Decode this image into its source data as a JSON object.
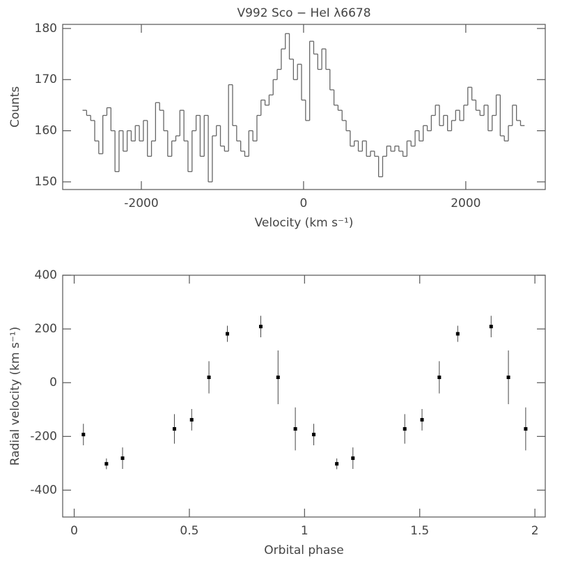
{
  "chart_data": [
    {
      "type": "line",
      "title": "V992 Sco − HeI λ6678",
      "x_label": "Velocity (km s⁻¹)",
      "y_label": "Counts",
      "x": [
        -2700,
        -2650,
        -2600,
        -2550,
        -2500,
        -2450,
        -2400,
        -2350,
        -2300,
        -2250,
        -2200,
        -2150,
        -2100,
        -2050,
        -2000,
        -1950,
        -1900,
        -1850,
        -1800,
        -1750,
        -1700,
        -1650,
        -1600,
        -1550,
        -1500,
        -1450,
        -1400,
        -1350,
        -1300,
        -1250,
        -1200,
        -1150,
        -1100,
        -1050,
        -1000,
        -950,
        -900,
        -850,
        -800,
        -750,
        -700,
        -650,
        -600,
        -550,
        -500,
        -450,
        -400,
        -350,
        -300,
        -250,
        -200,
        -150,
        -100,
        -50,
        0,
        50,
        100,
        150,
        200,
        250,
        300,
        350,
        400,
        450,
        500,
        550,
        600,
        650,
        700,
        750,
        800,
        850,
        900,
        950,
        1000,
        1050,
        1100,
        1150,
        1200,
        1250,
        1300,
        1350,
        1400,
        1450,
        1500,
        1550,
        1600,
        1650,
        1700,
        1750,
        1800,
        1850,
        1900,
        1950,
        2000,
        2050,
        2100,
        2150,
        2200,
        2250,
        2300,
        2350,
        2400,
        2450,
        2500,
        2550,
        2600,
        2650,
        2700
      ],
      "series": [
        {
          "color": "#666666",
          "values": [
            164,
            163,
            162,
            158,
            155.5,
            163,
            164.5,
            160,
            152,
            160,
            156,
            160,
            158,
            161,
            158,
            162,
            155,
            158,
            165.5,
            164,
            160,
            155,
            158,
            159,
            164,
            158,
            152,
            160,
            163,
            155,
            163,
            150,
            159,
            161,
            157,
            156,
            169,
            161,
            158,
            156,
            155,
            160,
            158,
            163,
            166,
            165,
            167,
            170,
            172,
            176,
            179,
            174,
            170,
            173,
            166,
            162,
            177.5,
            175,
            172,
            176,
            172,
            168,
            165,
            164,
            162,
            160,
            157,
            158,
            156,
            158,
            155,
            156,
            155,
            151,
            155,
            157,
            156,
            157,
            156,
            155,
            158,
            157,
            160,
            158,
            161,
            160,
            163,
            165,
            161,
            163,
            160,
            162,
            164,
            162,
            165,
            168.5,
            166,
            164,
            163,
            165,
            160,
            163,
            167,
            159,
            158,
            161,
            165,
            162,
            161
          ]
        }
      ],
      "xlim": [
        -2970,
        2980
      ],
      "xticks": [
        -2000,
        0,
        2000
      ],
      "ylim": [
        148.5,
        180.8
      ],
      "yticks": [
        150,
        160,
        170,
        180
      ]
    },
    {
      "type": "scatter",
      "x_label": "Orbital phase",
      "y_label": "Radial velocity (km s⁻¹)",
      "x": [
        0.04,
        0.14,
        0.21,
        0.435,
        0.51,
        0.585,
        0.665,
        0.81,
        0.885,
        0.96,
        1.04,
        1.14,
        1.21,
        1.435,
        1.51,
        1.585,
        1.665,
        1.81,
        1.885,
        1.96
      ],
      "series": [
        {
          "color": "#000000",
          "values": [
            -193,
            -302,
            -281,
            -172,
            -138,
            20,
            182,
            209,
            20,
            -172,
            -193,
            -302,
            -281,
            -172,
            -138,
            20,
            182,
            209,
            20,
            -172
          ],
          "errors": [
            40,
            20,
            40,
            55,
            40,
            60,
            30,
            40,
            100,
            80,
            40,
            20,
            40,
            55,
            40,
            60,
            30,
            40,
            100,
            80
          ]
        }
      ],
      "xlim": [
        -0.05,
        2.045
      ],
      "xticks": [
        0,
        0.5,
        1,
        1.5,
        2
      ],
      "ylim": [
        -500,
        400
      ],
      "yticks": [
        -400,
        -200,
        0,
        200,
        400
      ]
    }
  ]
}
